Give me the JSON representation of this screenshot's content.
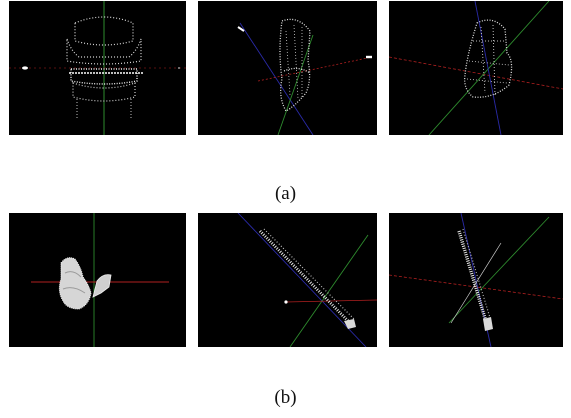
{
  "captions": {
    "a": "(a)",
    "b": "(b)"
  },
  "rows": [
    {
      "label": "a",
      "object": "chair",
      "views": [
        "front",
        "rotated",
        "rotated-axes"
      ]
    },
    {
      "label": "b",
      "object": "plant",
      "views": [
        "front",
        "edge-on",
        "edge-on-axes"
      ]
    }
  ],
  "colors": {
    "background": "#ffffff",
    "panel": "#000000",
    "points": "#e8e8e8",
    "axis_x": "#b02020",
    "axis_y": "#2e8b2e",
    "axis_z": "#2a2aa8"
  }
}
